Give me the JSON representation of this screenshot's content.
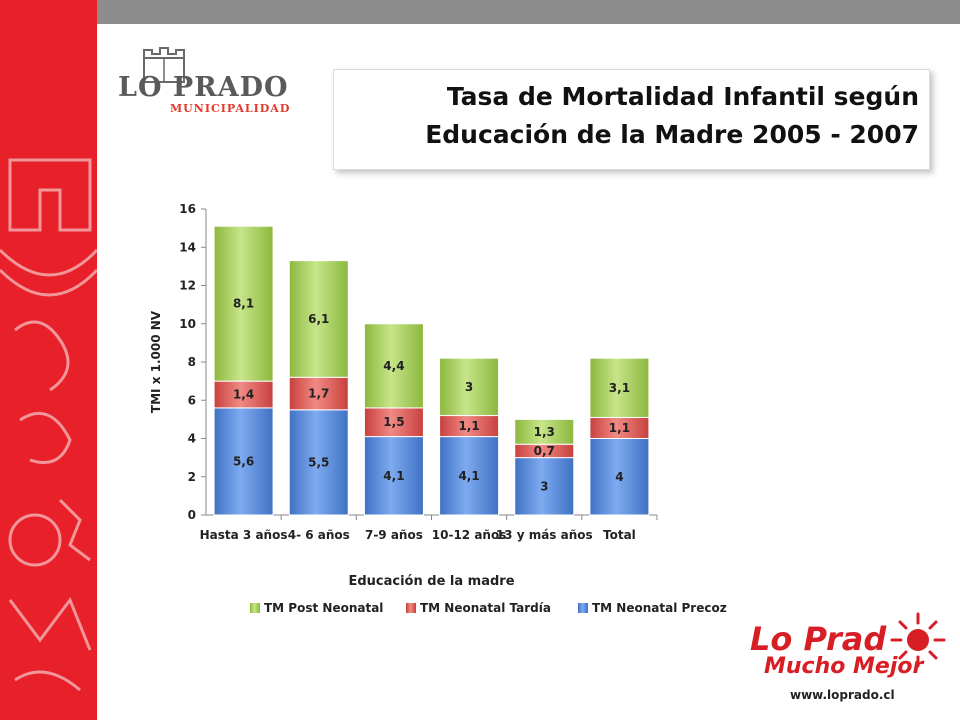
{
  "slide": {
    "title_line1": "Tasa de Mortalidad Infantil según",
    "title_line2": "Educación de la Madre 2005 - 2007"
  },
  "logo_left": {
    "name": "LO PRADO",
    "sub": "MUNICIPALIDAD"
  },
  "logo_right": {
    "name": "Lo Prad",
    "tagline": "Mucho Mejor",
    "url": "www.loprado.cl"
  },
  "colors": {
    "red_band": "#e8202a",
    "top_bar": "#8c8c8c",
    "post_neonatal": "#a9d05a",
    "neonatal_tardia": "#e05a55",
    "neonatal_precoz": "#5b8ed8"
  },
  "chart_data": {
    "type": "bar",
    "stacked": true,
    "categories": [
      "Hasta 3 años",
      "4- 6 años",
      "7-9 años",
      "10-12 años",
      "13 y más años",
      "Total"
    ],
    "series": [
      {
        "name": "TM Neonatal Precoz",
        "values": [
          5.6,
          5.5,
          4.1,
          4.1,
          3,
          4
        ],
        "labels": [
          "5,6",
          "5,5",
          "4,1",
          "4,1",
          "3",
          "4"
        ]
      },
      {
        "name": "TM Neonatal Tardía",
        "values": [
          1.4,
          1.7,
          1.5,
          1.1,
          0.7,
          1.1
        ],
        "labels": [
          "1,4",
          "1,7",
          "1,5",
          "1,1",
          "0,7",
          "1,1"
        ]
      },
      {
        "name": "TM Post Neonatal",
        "values": [
          8.1,
          6.1,
          4.4,
          3,
          1.3,
          3.1
        ],
        "labels": [
          "8,1",
          "6,1",
          "4,4",
          "3",
          "1,3",
          "3,1"
        ]
      }
    ],
    "legend_order": [
      "TM Post Neonatal",
      "TM Neonatal Tardía",
      "TM Neonatal Precoz"
    ],
    "legend_position": "bottom",
    "xlabel": "Educación de la madre",
    "ylabel": "TMI x 1.000 NV",
    "ylim": [
      0,
      16
    ],
    "yticks": [
      0,
      2,
      4,
      6,
      8,
      10,
      12,
      14,
      16
    ],
    "grid": false
  }
}
